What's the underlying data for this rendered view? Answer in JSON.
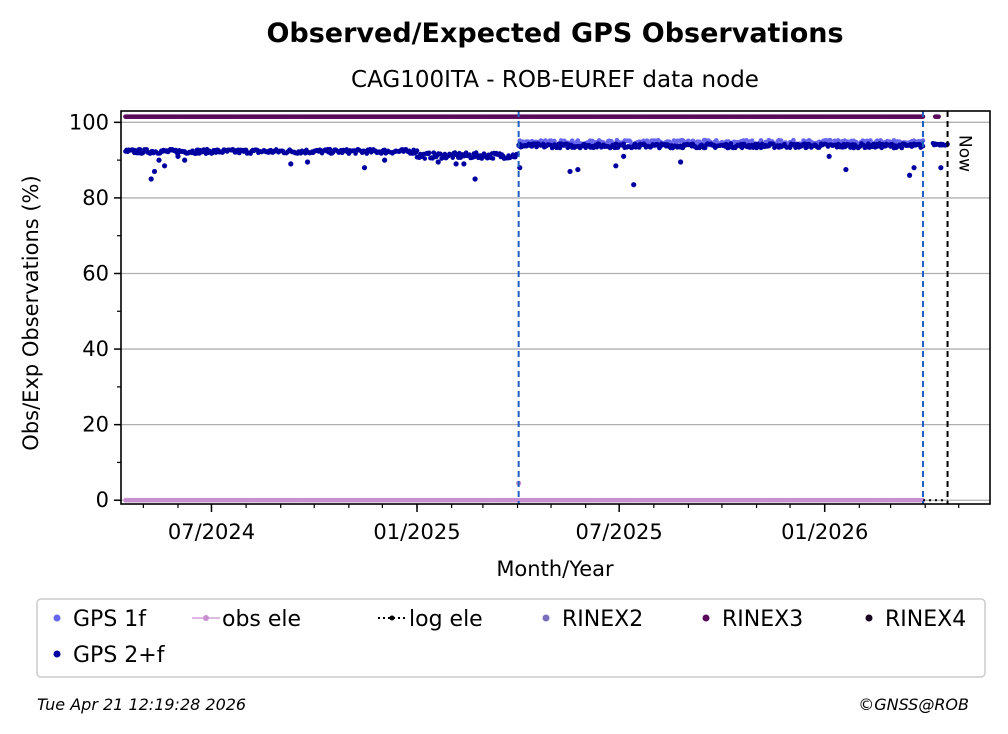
{
  "chart_data": {
    "type": "scatter",
    "title": "Observed/Expected GPS Observations",
    "subtitle": "CAG100ITA - ROB-EUREF data node",
    "xlabel": "Month/Year",
    "ylabel": "Obs/Exp Observations (%)",
    "xlim": [
      "2024-04-11",
      "2026-05-29"
    ],
    "ylim": [
      -1,
      103
    ],
    "yticks": [
      0,
      20,
      40,
      60,
      80,
      100
    ],
    "xticks": [
      {
        "date": "2024-07-01",
        "label": "07/2024"
      },
      {
        "date": "2025-01-01",
        "label": "01/2025"
      },
      {
        "date": "2025-07-01",
        "label": "07/2025"
      },
      {
        "date": "2026-01-01",
        "label": "01/2026"
      }
    ],
    "grid": "horizontal",
    "vlines": [
      {
        "date": "2025-04-02",
        "color": "#1f5fbf",
        "style": "dashed"
      },
      {
        "date": "2026-03-30",
        "color": "#1f5fbf",
        "style": "dashed"
      },
      {
        "date": "2026-04-21",
        "color": "#000000",
        "style": "dashed",
        "label": "Now"
      }
    ],
    "series": [
      {
        "name": "GPS 1f",
        "color": "#6666ee",
        "marker": "dot",
        "segments": [
          {
            "from": "2025-04-02",
            "to": "2026-03-30",
            "value": 94.5,
            "spread": 0.8
          }
        ]
      },
      {
        "name": "obs ele",
        "color": "#c890d0",
        "marker": "dot-line",
        "segments": [
          {
            "from": "2024-04-15",
            "to": "2026-03-30",
            "value": 0,
            "spread": 0
          }
        ],
        "outliers": [
          {
            "x": "2025-04-02",
            "y": 4.5
          }
        ]
      },
      {
        "name": "log ele",
        "color": "#000000",
        "marker": "dotted-line",
        "segments": [
          {
            "from": "2026-03-30",
            "to": "2026-04-21",
            "value": 0,
            "spread": 0
          }
        ]
      },
      {
        "name": "RINEX2",
        "color": "#7a70bb",
        "marker": "dot",
        "segments": []
      },
      {
        "name": "RINEX3",
        "color": "#5b0a5b",
        "marker": "dot",
        "segments": [
          {
            "from": "2024-04-15",
            "to": "2026-03-30",
            "value": 101.5,
            "spread": 0
          },
          {
            "from": "2026-04-10",
            "to": "2026-04-13",
            "value": 101.5,
            "spread": 0
          }
        ]
      },
      {
        "name": "RINEX4",
        "color": "#1a0520",
        "marker": "dot",
        "segments": []
      },
      {
        "name": "GPS 2+f",
        "color": "#0000a0",
        "marker": "dot",
        "segments": [
          {
            "from": "2024-04-15",
            "to": "2025-01-01",
            "value": 92.3,
            "spread": 0.6
          },
          {
            "from": "2025-01-01",
            "to": "2025-04-01",
            "value": 91.2,
            "spread": 0.8
          },
          {
            "from": "2025-04-02",
            "to": "2026-03-30",
            "value": 93.8,
            "spread": 0.6
          },
          {
            "from": "2026-04-08",
            "to": "2026-04-21",
            "value": 94.2,
            "spread": 0.3
          }
        ],
        "outliers": [
          {
            "x": "2024-05-08",
            "y": 85
          },
          {
            "x": "2024-05-11",
            "y": 87
          },
          {
            "x": "2024-05-15",
            "y": 90
          },
          {
            "x": "2024-05-20",
            "y": 88.5
          },
          {
            "x": "2024-06-01",
            "y": 91
          },
          {
            "x": "2024-06-07",
            "y": 90
          },
          {
            "x": "2024-09-10",
            "y": 89
          },
          {
            "x": "2024-09-25",
            "y": 89.5
          },
          {
            "x": "2024-11-15",
            "y": 88
          },
          {
            "x": "2024-12-03",
            "y": 90
          },
          {
            "x": "2025-01-20",
            "y": 89.5
          },
          {
            "x": "2025-02-05",
            "y": 89
          },
          {
            "x": "2025-02-12",
            "y": 89
          },
          {
            "x": "2025-02-22",
            "y": 85
          },
          {
            "x": "2025-04-03",
            "y": 88
          },
          {
            "x": "2025-05-18",
            "y": 87
          },
          {
            "x": "2025-05-25",
            "y": 87.5
          },
          {
            "x": "2025-06-28",
            "y": 88.5
          },
          {
            "x": "2025-07-05",
            "y": 91
          },
          {
            "x": "2025-07-14",
            "y": 83.5
          },
          {
            "x": "2025-08-25",
            "y": 89.5
          },
          {
            "x": "2026-01-05",
            "y": 91
          },
          {
            "x": "2026-01-20",
            "y": 87.5
          },
          {
            "x": "2026-03-18",
            "y": 86
          },
          {
            "x": "2026-03-22",
            "y": 88
          },
          {
            "x": "2026-04-15",
            "y": 88
          }
        ]
      }
    ],
    "legend": {
      "position": "below",
      "entries": [
        "GPS 1f",
        "obs ele",
        "log ele",
        "RINEX2",
        "RINEX3",
        "RINEX4",
        "GPS 2+f"
      ]
    }
  },
  "footer": {
    "timestamp": "Tue Apr 21 12:19:28 2026",
    "credit": "©GNSS@ROB"
  }
}
